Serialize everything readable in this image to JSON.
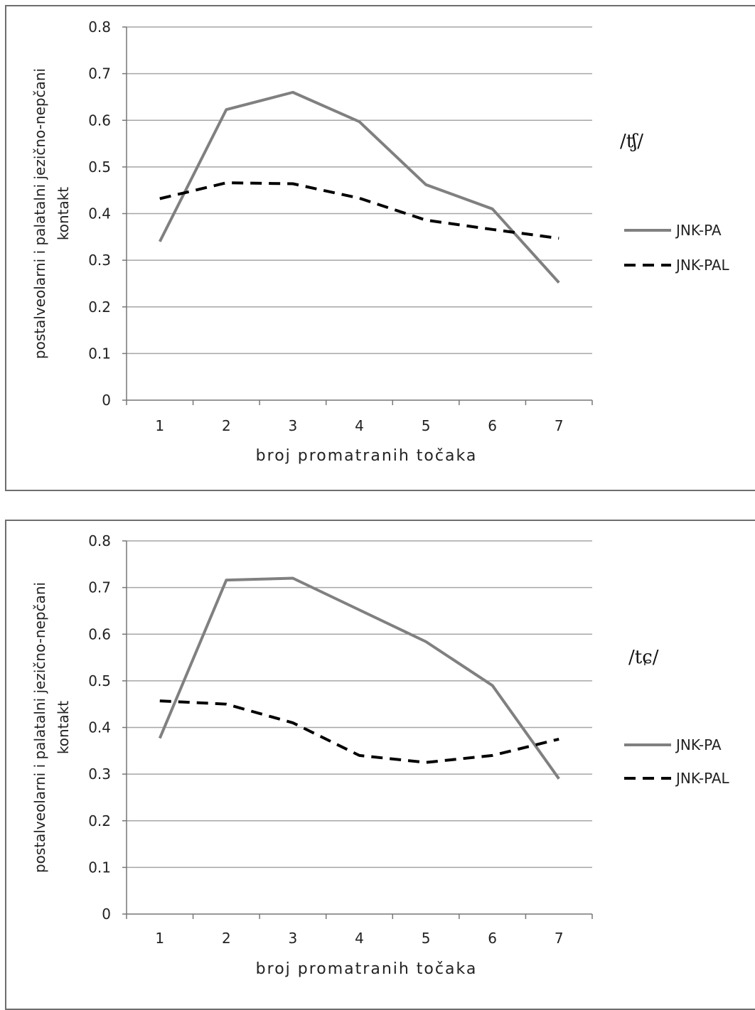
{
  "chart_data": [
    {
      "type": "line",
      "annotation": "/ʧ/",
      "xlabel": "broj promatranih točaka",
      "ylabel": [
        "postalveolarni i palatalni jezično-nepčani",
        "kontakt"
      ],
      "categories": [
        "1",
        "2",
        "3",
        "4",
        "5",
        "6",
        "7"
      ],
      "yticks": [
        "0",
        "0.1",
        "0.2",
        "0.3",
        "0.4",
        "0.5",
        "0.6",
        "0.7",
        "0.8"
      ],
      "ylim": [
        0,
        0.8
      ],
      "grid": true,
      "legend_position": "right",
      "series": [
        {
          "name": "JNK-PA",
          "values": [
            0.34,
            0.623,
            0.66,
            0.597,
            0.462,
            0.41,
            0.252
          ],
          "color": "#808080",
          "style": "solid"
        },
        {
          "name": "JNK-PAL",
          "values": [
            0.432,
            0.466,
            0.464,
            0.433,
            0.386,
            0.366,
            0.347
          ],
          "color": "#000000",
          "style": "dashed"
        }
      ]
    },
    {
      "type": "line",
      "annotation": "/tɕ/",
      "xlabel": "broj promatranih točaka",
      "ylabel": [
        "postalveolarni i palatalni jezično-nepčani",
        "kontakt"
      ],
      "categories": [
        "1",
        "2",
        "3",
        "4",
        "5",
        "6",
        "7"
      ],
      "yticks": [
        "0",
        "0.1",
        "0.2",
        "0.3",
        "0.4",
        "0.5",
        "0.6",
        "0.7",
        "0.8"
      ],
      "ylim": [
        0,
        0.8
      ],
      "grid": true,
      "legend_position": "right",
      "series": [
        {
          "name": "JNK-PA",
          "values": [
            0.377,
            0.716,
            0.72,
            0.652,
            0.584,
            0.49,
            0.29
          ],
          "color": "#808080",
          "style": "solid"
        },
        {
          "name": "JNK-PAL",
          "values": [
            0.457,
            0.45,
            0.41,
            0.34,
            0.325,
            0.34,
            0.375
          ],
          "color": "#000000",
          "style": "dashed"
        }
      ]
    }
  ]
}
